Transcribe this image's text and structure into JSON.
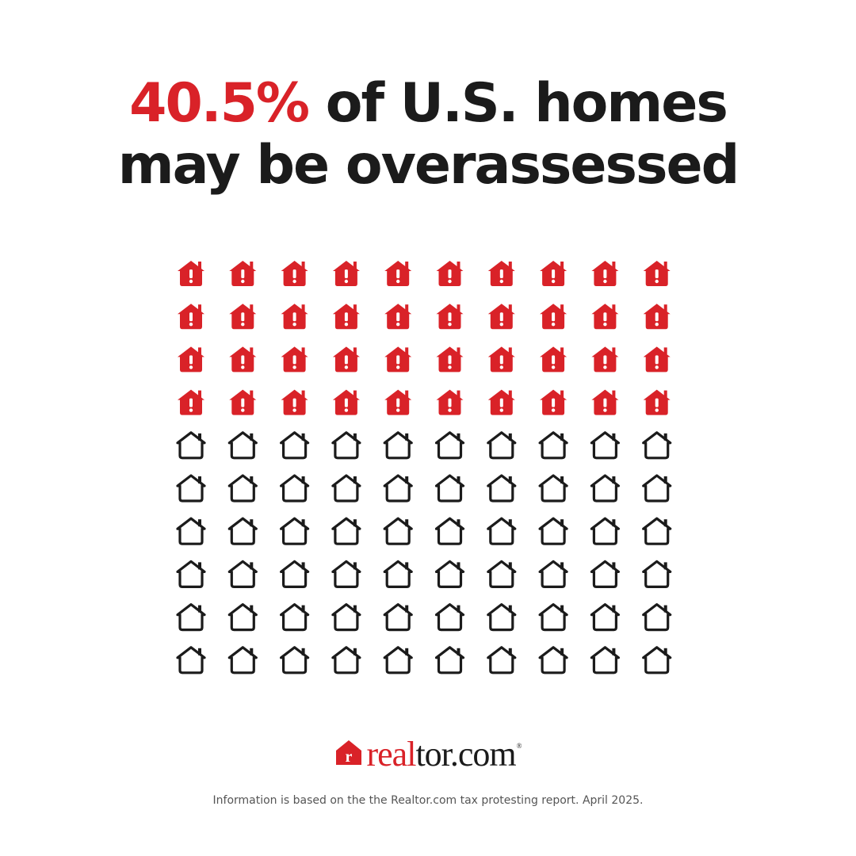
{
  "headline": {
    "highlight": "40.5%",
    "line1_rest": " of U.S. homes",
    "line2": "may be overassessed"
  },
  "colors": {
    "accent": "#d92228",
    "dark": "#1b1b1b",
    "background": "#ffffff"
  },
  "chart_data": {
    "type": "pictogram",
    "percent_highlighted": 40.5,
    "total_icons": 100,
    "rows": 10,
    "columns": 10,
    "highlighted_icons": 40,
    "highlighted_icon": "house-alert-icon",
    "regular_icon": "house-outline-icon"
  },
  "logo": {
    "part1": "real",
    "part2": "tor.com",
    "registered": "®",
    "mark_letter": "r"
  },
  "footnote": "Information is based on the the Realtor.com tax protesting report. April 2025."
}
